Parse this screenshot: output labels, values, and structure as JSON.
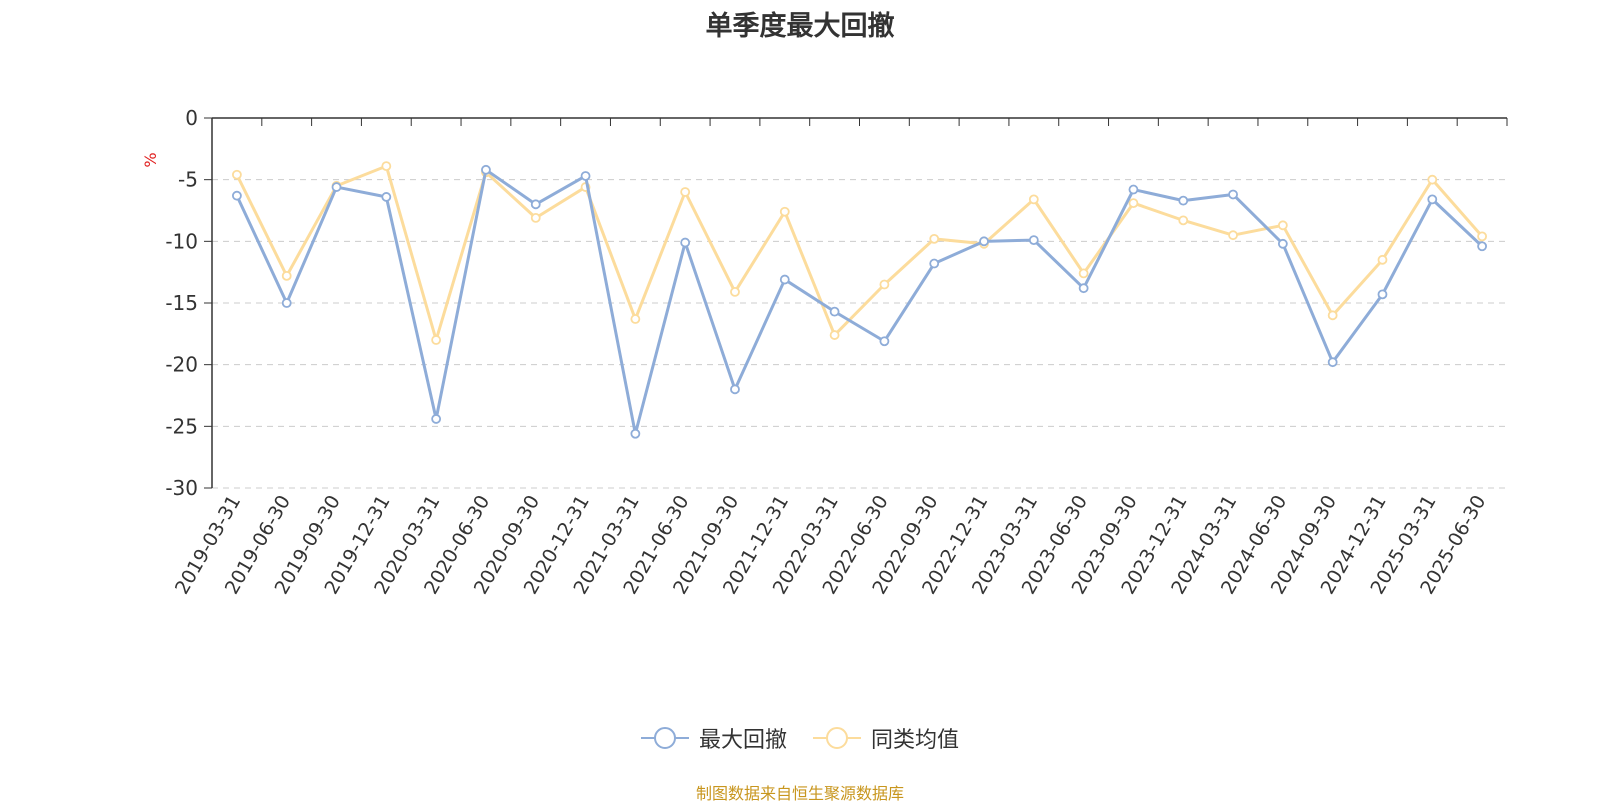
{
  "chart_data": {
    "type": "line",
    "title": "单季度最大回撤",
    "ylabel": "%",
    "ylim": [
      -30,
      0
    ],
    "yticks": [
      0,
      -5,
      -10,
      -15,
      -20,
      -25,
      -30
    ],
    "grid": true,
    "legend_position": "bottom",
    "x": [
      "2019-03-31",
      "2019-06-30",
      "2019-09-30",
      "2019-12-31",
      "2020-03-31",
      "2020-06-30",
      "2020-09-30",
      "2020-12-31",
      "2021-03-31",
      "2021-06-30",
      "2021-09-30",
      "2021-12-31",
      "2022-03-31",
      "2022-06-30",
      "2022-09-30",
      "2022-12-31",
      "2023-03-31",
      "2023-06-30",
      "2023-09-30",
      "2023-12-31",
      "2024-03-31",
      "2024-06-30",
      "2024-09-30",
      "2024-12-31",
      "2025-03-31",
      "2025-06-30"
    ],
    "series": [
      {
        "name": "最大回撤",
        "color": "#8eacd8",
        "values": [
          -6.3,
          -15.0,
          -5.6,
          -6.4,
          -24.4,
          -4.2,
          -7.0,
          -4.7,
          -25.6,
          -10.1,
          -22.0,
          -13.1,
          -15.7,
          -18.1,
          -11.8,
          -10.0,
          -9.9,
          -13.8,
          -5.8,
          -6.7,
          -6.2,
          -10.2,
          -19.8,
          -14.3,
          -6.6,
          -10.4
        ]
      },
      {
        "name": "同类均值",
        "color": "#fcdc9c",
        "values": [
          -4.6,
          -12.8,
          -5.5,
          -3.9,
          -18.0,
          -4.4,
          -8.1,
          -5.6,
          -16.3,
          -6.0,
          -14.1,
          -7.6,
          -17.6,
          -13.5,
          -9.8,
          -10.2,
          -6.6,
          -12.6,
          -6.9,
          -8.3,
          -9.5,
          -8.7,
          -16.0,
          -11.5,
          -5.0,
          -9.6
        ]
      }
    ]
  },
  "footer": {
    "source": "制图数据来自恒生聚源数据库"
  }
}
